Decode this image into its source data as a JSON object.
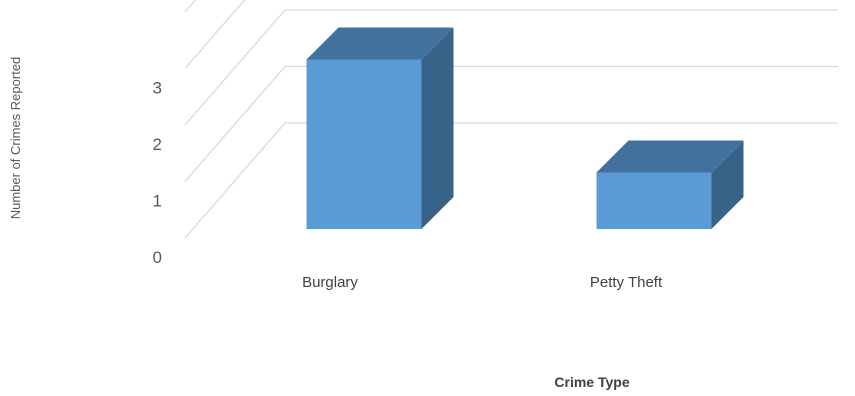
{
  "chart_data": {
    "type": "bar",
    "style": "3d-column",
    "categories": [
      "Burglary",
      "Petty Theft"
    ],
    "values": [
      3,
      1
    ],
    "xlabel": "Crime Type",
    "ylabel": "Number of Crimes Reported",
    "y_ticks": [
      "0",
      "1",
      "2",
      "3"
    ],
    "ylim": [
      0,
      4
    ],
    "grid": true,
    "legend": "none",
    "colors": {
      "bar_front": "#5b9bd5",
      "bar_top": "#41719c",
      "bar_side": "#376389",
      "grid": "#d9d9d9"
    }
  }
}
